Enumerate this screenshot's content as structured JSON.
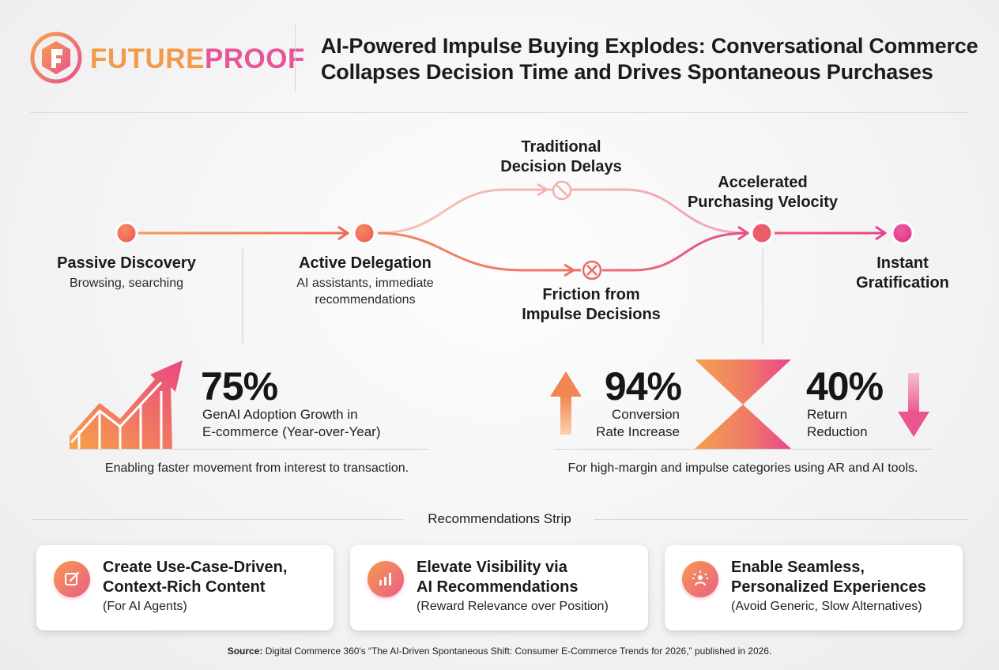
{
  "brand": {
    "name_part1": "FUTURE",
    "name_part2": "PROOF",
    "colors": {
      "orange": "#f29a4a",
      "pink": "#e8569a"
    }
  },
  "headline": {
    "line1": "AI-Powered Impulse Buying Explodes: Conversational Commerce",
    "line2": "Collapses Decision Time and Drives Spontaneous Purchases"
  },
  "flow": {
    "passive": {
      "title": "Passive Discovery",
      "subtitle": "Browsing, searching"
    },
    "active": {
      "title": "Active Delegation",
      "subtitle_line1": "AI assistants, immediate",
      "subtitle_line2": "recommendations"
    },
    "traditional": {
      "title_line1": "Traditional",
      "title_line2": "Decision Delays"
    },
    "friction": {
      "title_line1": "Friction from",
      "title_line2": "Impulse Decisions"
    },
    "accelerated": {
      "title_line1": "Accelerated",
      "title_line2": "Purchasing Velocity"
    },
    "instant": {
      "title_line1": "Instant",
      "title_line2": "Gratification"
    }
  },
  "stats": {
    "adoption": {
      "value": "75%",
      "label_line1": "GenAI Adoption Growth in",
      "label_line2_bold": "E-commerce",
      "label_line2_rest": " (Year-over-Year)",
      "caption": "Enabling faster movement from interest to transaction."
    },
    "conversion": {
      "value": "94%",
      "label_line1": "Conversion",
      "label_line2": "Rate Increase",
      "trend": "up"
    },
    "returns": {
      "value": "40%",
      "label_line1": "Return",
      "label_line2": "Reduction",
      "trend": "down"
    },
    "right_caption": "For high-margin and impulse categories using AR and AI tools."
  },
  "recommendations": {
    "title": "Recommendations Strip",
    "cards": [
      {
        "icon": "edit-icon",
        "title_line1": "Create Use-Case-Driven,",
        "title_line2": "Context-Rich Content",
        "subtitle": "(For AI Agents)"
      },
      {
        "icon": "bar-chart-icon",
        "title_line1": "Elevate Visibility via",
        "title_line2": "AI Recommendations",
        "subtitle": "(Reward Relevance over Position)"
      },
      {
        "icon": "sparkle-person-icon",
        "title_line1": "Enable Seamless,",
        "title_line2": "Personalized Experiences",
        "subtitle": "(Avoid Generic, Slow Alternatives)"
      }
    ]
  },
  "source": {
    "label": "Source:",
    "text": " Digital Commerce 360's “The AI-Driven Spontaneous Shift: Consumer E-Commerce Trends for 2026,” published in 2026."
  }
}
